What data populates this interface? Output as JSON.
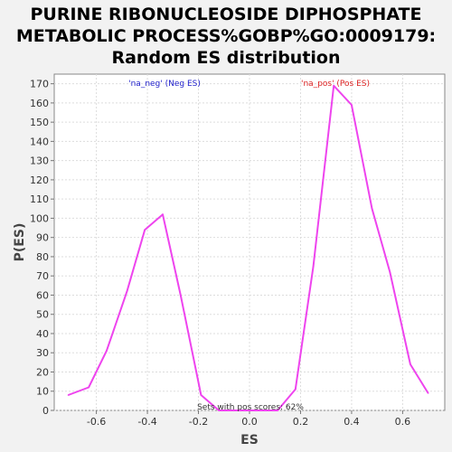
{
  "chart_data": {
    "type": "line",
    "title_lines": [
      "PURINE RIBONUCLEOSIDE DIPHOSPHATE",
      "METABOLIC PROCESS%GOBP%GO:0009179:",
      "Random ES distribution"
    ],
    "xlabel": "ES",
    "ylabel": "P(ES)",
    "xlim": [
      -0.765,
      0.765
    ],
    "ylim": [
      0,
      175
    ],
    "x_ticks": [
      -0.6,
      -0.4,
      -0.2,
      0.0,
      0.2,
      0.4,
      0.6
    ],
    "x_tick_labels": [
      "-0.6",
      "-0.4",
      "-0.2",
      "0.0",
      "0.2",
      "0.4",
      "0.6"
    ],
    "y_ticks": [
      0,
      10,
      20,
      30,
      40,
      50,
      60,
      70,
      80,
      90,
      100,
      110,
      120,
      130,
      140,
      150,
      160,
      170
    ],
    "y_tick_labels": [
      "0",
      "10",
      "20",
      "30",
      "40",
      "50",
      "60",
      "70",
      "80",
      "90",
      "100",
      "110",
      "120",
      "130",
      "140",
      "150",
      "160",
      "170"
    ],
    "grid": true,
    "line_color": "#ee44ee",
    "series": [
      {
        "x": [
          -0.71,
          -0.63,
          -0.56,
          -0.48,
          -0.41,
          -0.34,
          -0.27,
          -0.19,
          -0.12,
          -0.04,
          0.04,
          0.11,
          0.18,
          0.25,
          0.33,
          0.4,
          0.48,
          0.55,
          0.63,
          0.7
        ],
        "y": [
          8,
          12,
          31,
          62,
          94,
          102,
          60,
          8,
          0,
          0,
          0,
          0,
          11,
          75,
          169,
          159,
          105,
          72,
          24,
          9
        ]
      }
    ],
    "annotations": {
      "neg_label": "'na_neg' (Neg ES)",
      "neg_color": "#2222cc",
      "pos_label": "'na_pos' (Pos ES)",
      "pos_color": "#dd2222",
      "footer": "Sets with pos scores: 62%"
    }
  }
}
